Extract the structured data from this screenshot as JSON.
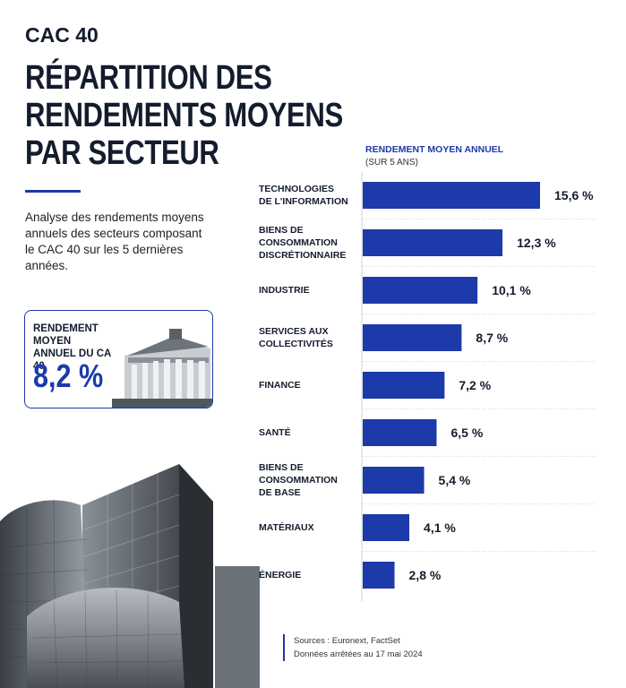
{
  "header": {
    "kicker": "CAC 40",
    "title_lines": [
      "RÉPARTITION DES",
      "RENDEMENTS MOYENS",
      "PAR SECTEUR"
    ],
    "description": "Analyse des rendements moyens annuels des secteurs composant le CAC 40 sur les 5 dernières années."
  },
  "kpi": {
    "label_lines": [
      "RENDEMENT MOYEN",
      "ANNUEL DU CAC 40"
    ],
    "value": "8,2 %"
  },
  "source": {
    "line1": "Sources : Euronext, FactSet",
    "line2": "Données arrêtées au 17 mai 2024"
  },
  "colors": {
    "accent": "#1c3aa9",
    "text": "#141c2e"
  },
  "chart_data": {
    "type": "bar",
    "orientation": "horizontal",
    "axis_title": "RENDEMENT MOYEN ANNUEL",
    "axis_subtitle": "(SUR 5 ANS)",
    "categories": [
      [
        "TECHNOLOGIES",
        "DE L'INFORMATION"
      ],
      [
        "BIENS DE",
        "CONSOMMATION",
        "DISCRÉTIONNAIRE"
      ],
      [
        "INDUSTRIE"
      ],
      [
        "SERVICES AUX",
        "COLLECTIVITÉS"
      ],
      [
        "FINANCE"
      ],
      [
        "SANTÉ"
      ],
      [
        "BIENS DE",
        "CONSOMMATION",
        "DE BASE"
      ],
      [
        "MATÉRIAUX"
      ],
      [
        "ÉNERGIE"
      ]
    ],
    "values": [
      15.6,
      12.3,
      10.1,
      8.7,
      7.2,
      6.5,
      5.4,
      4.1,
      2.8
    ],
    "value_labels": [
      "15,6 %",
      "12,3 %",
      "10,1 %",
      "8,7 %",
      "7,2 %",
      "6,5 %",
      "5,4 %",
      "4,1 %",
      "2,8 %"
    ],
    "xlim": [
      0,
      15.6
    ],
    "bar_color": "#1c3aa9",
    "grid": false
  }
}
